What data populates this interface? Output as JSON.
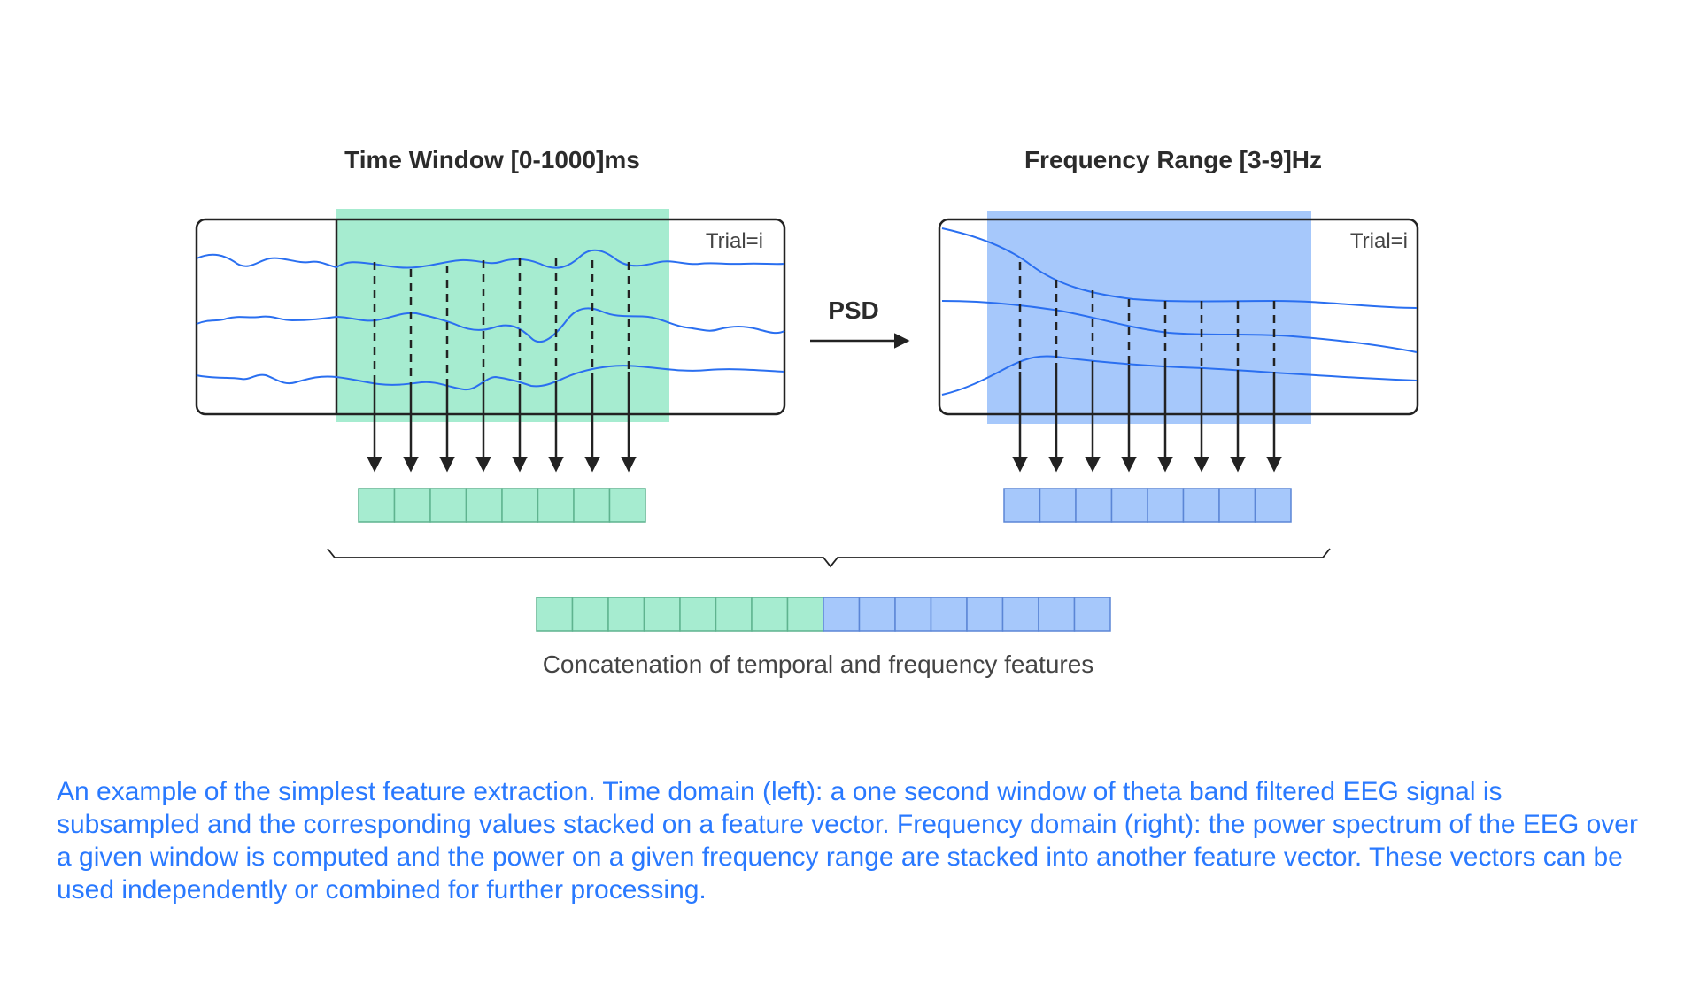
{
  "left_panel": {
    "title": "Time Window [0-1000]ms",
    "trial_label": "Trial=i",
    "feature_cells": 8
  },
  "right_panel": {
    "title": "Frequency Range [3-9]Hz",
    "trial_label": "Trial=i",
    "feature_cells": 8
  },
  "transform_label": "PSD",
  "concatenated_cells": {
    "temporal": 8,
    "frequency": 8
  },
  "concat_label": "Concatenation of temporal and frequency features",
  "caption": "An example of the simplest feature extraction. Time domain (left): a one second window of theta band filtered EEG signal is subsampled and the corresponding values stacked on a feature vector. Frequency domain (right): the power spectrum of the  EEG over a given window is computed and the power on a given frequency range are stacked into another feature vector. These vectors can be used independently or combined for further processing.",
  "colors": {
    "temporal": "#a6ecd0",
    "temporal_stroke": "#5fb38f",
    "frequency": "#a6c8fb",
    "frequency_stroke": "#5b86d6",
    "signal": "#2a6ff0",
    "ink": "#222222",
    "caption": "#2979ff"
  }
}
